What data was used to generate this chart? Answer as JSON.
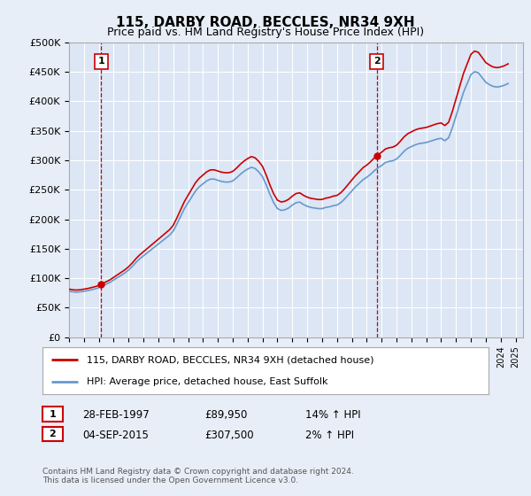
{
  "title": "115, DARBY ROAD, BECCLES, NR34 9XH",
  "subtitle": "Price paid vs. HM Land Registry's House Price Index (HPI)",
  "ylabel_ticks": [
    "£0",
    "£50K",
    "£100K",
    "£150K",
    "£200K",
    "£250K",
    "£300K",
    "£350K",
    "£400K",
    "£450K",
    "£500K"
  ],
  "ylim": [
    0,
    500000
  ],
  "xlim_start": 1995.0,
  "xlim_end": 2025.5,
  "hpi_color": "#6699cc",
  "price_color": "#cc0000",
  "background_color": "#e8eef7",
  "plot_bg_color": "#dce6f5",
  "grid_color": "#ffffff",
  "legend_label_red": "115, DARBY ROAD, BECCLES, NR34 9XH (detached house)",
  "legend_label_blue": "HPI: Average price, detached house, East Suffolk",
  "sale1_date": "28-FEB-1997",
  "sale1_price": "£89,950",
  "sale1_hpi": "14% ↑ HPI",
  "sale1_year": 1997.17,
  "sale1_value": 89950,
  "sale2_date": "04-SEP-2015",
  "sale2_price": "£307,500",
  "sale2_hpi": "2% ↑ HPI",
  "sale2_year": 2015.67,
  "sale2_value": 307500,
  "footer": "Contains HM Land Registry data © Crown copyright and database right 2024.\nThis data is licensed under the Open Government Licence v3.0.",
  "hpi_data_x": [
    1995.0,
    1995.25,
    1995.5,
    1995.75,
    1996.0,
    1996.25,
    1996.5,
    1996.75,
    1997.0,
    1997.25,
    1997.5,
    1997.75,
    1998.0,
    1998.25,
    1998.5,
    1998.75,
    1999.0,
    1999.25,
    1999.5,
    1999.75,
    2000.0,
    2000.25,
    2000.5,
    2000.75,
    2001.0,
    2001.25,
    2001.5,
    2001.75,
    2002.0,
    2002.25,
    2002.5,
    2002.75,
    2003.0,
    2003.25,
    2003.5,
    2003.75,
    2004.0,
    2004.25,
    2004.5,
    2004.75,
    2005.0,
    2005.25,
    2005.5,
    2005.75,
    2006.0,
    2006.25,
    2006.5,
    2006.75,
    2007.0,
    2007.25,
    2007.5,
    2007.75,
    2008.0,
    2008.25,
    2008.5,
    2008.75,
    2009.0,
    2009.25,
    2009.5,
    2009.75,
    2010.0,
    2010.25,
    2010.5,
    2010.75,
    2011.0,
    2011.25,
    2011.5,
    2011.75,
    2012.0,
    2012.25,
    2012.5,
    2012.75,
    2013.0,
    2013.25,
    2013.5,
    2013.75,
    2014.0,
    2014.25,
    2014.5,
    2014.75,
    2015.0,
    2015.25,
    2015.5,
    2015.75,
    2016.0,
    2016.25,
    2016.5,
    2016.75,
    2017.0,
    2017.25,
    2017.5,
    2017.75,
    2018.0,
    2018.25,
    2018.5,
    2018.75,
    2019.0,
    2019.25,
    2019.5,
    2019.75,
    2020.0,
    2020.25,
    2020.5,
    2020.75,
    2021.0,
    2021.25,
    2021.5,
    2021.75,
    2022.0,
    2022.25,
    2022.5,
    2022.75,
    2023.0,
    2023.25,
    2023.5,
    2023.75,
    2024.0,
    2024.25,
    2024.5
  ],
  "hpi_data_y": [
    78000,
    77000,
    76500,
    77000,
    78000,
    79000,
    80500,
    82000,
    84000,
    87000,
    90000,
    93000,
    97000,
    101000,
    105000,
    109000,
    114000,
    120000,
    127000,
    133000,
    138000,
    143000,
    148000,
    153000,
    158000,
    163000,
    168000,
    173000,
    180000,
    192000,
    205000,
    218000,
    228000,
    238000,
    248000,
    255000,
    260000,
    265000,
    268000,
    268000,
    266000,
    264000,
    263000,
    263000,
    265000,
    270000,
    276000,
    281000,
    285000,
    288000,
    286000,
    280000,
    272000,
    258000,
    242000,
    228000,
    218000,
    215000,
    216000,
    219000,
    224000,
    228000,
    229000,
    225000,
    222000,
    220000,
    219000,
    218000,
    218000,
    220000,
    221000,
    223000,
    224000,
    228000,
    234000,
    241000,
    248000,
    255000,
    261000,
    267000,
    271000,
    276000,
    282000,
    287000,
    291000,
    296000,
    298000,
    299000,
    302000,
    308000,
    315000,
    320000,
    323000,
    326000,
    328000,
    329000,
    330000,
    332000,
    334000,
    336000,
    337000,
    333000,
    338000,
    355000,
    375000,
    395000,
    415000,
    430000,
    445000,
    450000,
    448000,
    440000,
    432000,
    428000,
    425000,
    424000,
    425000,
    427000,
    430000
  ]
}
